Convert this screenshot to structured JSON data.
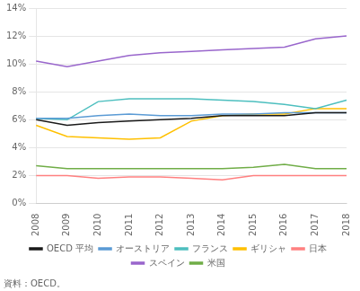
{
  "chart_data": {
    "type": "line",
    "annotation": "資料：OECD。",
    "categories": [
      "2008",
      "2009",
      "2010",
      "2011",
      "2012",
      "2013",
      "2014",
      "2015",
      "2016",
      "2017",
      "2018"
    ],
    "series": [
      {
        "name": "OECD 平均",
        "color": "#1a1a1a",
        "values": [
          6.0,
          5.6,
          5.8,
          5.9,
          6.0,
          6.1,
          6.3,
          6.3,
          6.3,
          6.5,
          6.5
        ]
      },
      {
        "name": "オーストリア",
        "color": "#5B9BD5",
        "values": [
          6.1,
          6.1,
          6.3,
          6.4,
          6.3,
          6.3,
          6.4,
          6.4,
          6.5,
          6.5,
          6.5
        ]
      },
      {
        "name": "フランス",
        "color": "#4DBFBF",
        "values": [
          6.1,
          6.0,
          7.3,
          7.5,
          7.5,
          7.5,
          7.4,
          7.3,
          7.1,
          6.8,
          7.4
        ]
      },
      {
        "name": "ギリシャ",
        "color": "#FFC000",
        "values": [
          5.6,
          4.8,
          4.7,
          4.6,
          4.7,
          5.9,
          6.3,
          6.4,
          6.4,
          6.8,
          6.8
        ]
      },
      {
        "name": "日本",
        "color": "#FF8080",
        "values": [
          2.0,
          2.0,
          1.8,
          1.9,
          1.9,
          1.8,
          1.7,
          2.0,
          2.0,
          2.0,
          2.0
        ]
      },
      {
        "name": "スペイン",
        "color": "#9966CC",
        "values": [
          10.2,
          9.8,
          10.2,
          10.6,
          10.8,
          10.9,
          11.0,
          11.1,
          11.2,
          11.8,
          12.0
        ]
      },
      {
        "name": "米国",
        "color": "#70AD47",
        "values": [
          2.7,
          2.5,
          2.5,
          2.5,
          2.5,
          2.5,
          2.5,
          2.6,
          2.8,
          2.5,
          2.5
        ]
      }
    ],
    "ylim": [
      0,
      14
    ],
    "yticks": [
      {
        "value": 0,
        "label": "0%"
      },
      {
        "value": 2,
        "label": "2%"
      },
      {
        "value": 4,
        "label": "4%"
      },
      {
        "value": 6,
        "label": "6%"
      },
      {
        "value": 8,
        "label": "8%"
      },
      {
        "value": 10,
        "label": "10%"
      },
      {
        "value": 12,
        "label": "12%"
      },
      {
        "value": 14,
        "label": "14%"
      }
    ],
    "grid": true,
    "legend": "bottom"
  }
}
